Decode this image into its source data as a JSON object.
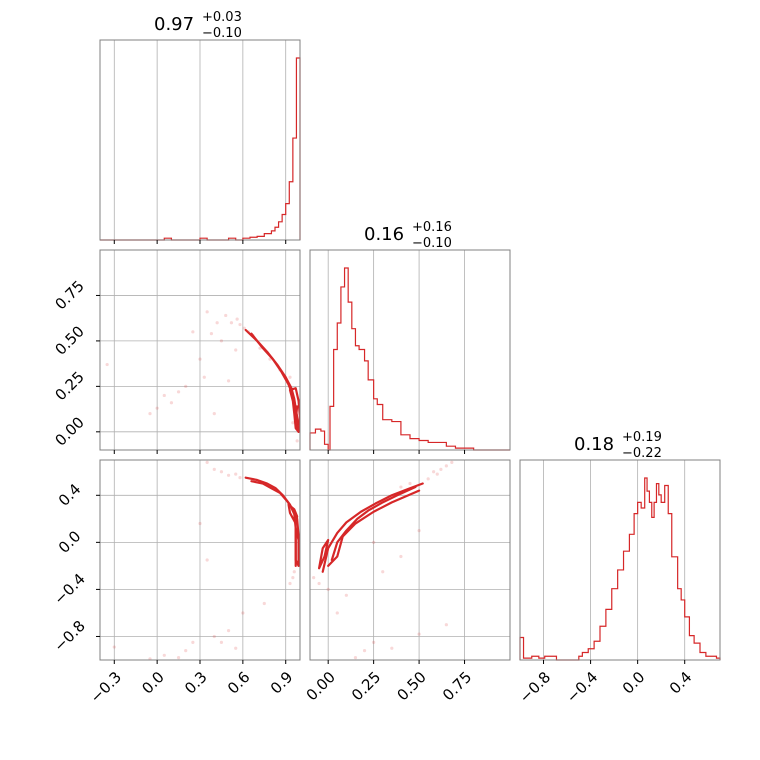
{
  "chart_data": {
    "type": "corner",
    "color": "#d62728",
    "grid": true,
    "params": [
      {
        "range": [
          -0.4,
          1.0
        ],
        "ticks": [
          -0.3,
          0.0,
          0.3,
          0.6,
          0.9
        ],
        "tick_labels": [
          "−0.3",
          "0.0",
          "0.3",
          "0.6",
          "0.9"
        ],
        "title": {
          "median": "0.97",
          "plus": "+0.03",
          "minus": "−0.10"
        },
        "hist": {
          "edges": [
            -0.4,
            -0.35,
            -0.3,
            -0.25,
            -0.2,
            -0.15,
            -0.1,
            -0.05,
            0.0,
            0.05,
            0.1,
            0.15,
            0.2,
            0.25,
            0.3,
            0.35,
            0.4,
            0.45,
            0.5,
            0.55,
            0.6,
            0.65,
            0.7,
            0.75,
            0.8,
            0.825,
            0.85,
            0.875,
            0.9,
            0.925,
            0.95,
            0.975,
            1.0
          ],
          "counts": [
            0,
            0,
            0,
            0,
            0,
            0,
            0,
            0,
            0,
            0.01,
            0,
            0,
            0,
            0,
            0.01,
            0,
            0,
            0,
            0.01,
            0,
            0.01,
            0.015,
            0.02,
            0.035,
            0.05,
            0.07,
            0.1,
            0.14,
            0.2,
            0.32,
            0.56,
            1.0
          ]
        }
      },
      {
        "range": [
          -0.1,
          1.0
        ],
        "ticks": [
          0.0,
          0.25,
          0.5,
          0.75
        ],
        "tick_labels": [
          "0.00",
          "0.25",
          "0.50",
          "0.75"
        ],
        "title": {
          "median": "0.16",
          "plus": "+0.16",
          "minus": "−0.10"
        },
        "hist": {
          "edges": [
            -0.1,
            -0.07,
            -0.04,
            -0.02,
            0.0,
            0.01,
            0.03,
            0.05,
            0.07,
            0.09,
            0.11,
            0.13,
            0.15,
            0.17,
            0.2,
            0.22,
            0.25,
            0.27,
            0.3,
            0.35,
            0.4,
            0.45,
            0.5,
            0.55,
            0.6,
            0.65,
            0.7,
            0.8,
            1.0
          ],
          "counts": [
            0.09,
            0.11,
            0.1,
            0.03,
            0.0,
            0.23,
            0.53,
            0.67,
            0.86,
            0.96,
            0.78,
            0.64,
            0.55,
            0.53,
            0.47,
            0.37,
            0.27,
            0.24,
            0.16,
            0.15,
            0.08,
            0.06,
            0.05,
            0.04,
            0.04,
            0.02,
            0.01,
            0.0
          ]
        }
      },
      {
        "range": [
          -1.0,
          0.7
        ],
        "ticks": [
          -0.8,
          -0.4,
          0.0,
          0.4
        ],
        "tick_labels": [
          "−0.8",
          "−0.4",
          "0.0",
          "0.4"
        ],
        "title": {
          "median": "0.18",
          "plus": "+0.19",
          "minus": "−0.22"
        },
        "hist": {
          "edges": [
            -1.0,
            -0.97,
            -0.9,
            -0.84,
            -0.79,
            -0.69,
            -0.5,
            -0.47,
            -0.42,
            -0.37,
            -0.32,
            -0.27,
            -0.22,
            -0.17,
            -0.12,
            -0.07,
            -0.03,
            0.0,
            0.03,
            0.06,
            0.08,
            0.1,
            0.12,
            0.14,
            0.16,
            0.18,
            0.2,
            0.23,
            0.26,
            0.29,
            0.34,
            0.37,
            0.4,
            0.44,
            0.48,
            0.53,
            0.58,
            0.63,
            0.67,
            0.7
          ],
          "counts": [
            0.12,
            0.01,
            0.02,
            0.01,
            0.02,
            0.0,
            0.02,
            0.04,
            0.06,
            0.1,
            0.18,
            0.27,
            0.38,
            0.48,
            0.58,
            0.67,
            0.78,
            0.84,
            0.81,
            0.97,
            0.9,
            0.84,
            0.76,
            0.84,
            0.94,
            0.88,
            0.84,
            0.93,
            0.78,
            0.55,
            0.38,
            0.32,
            0.23,
            0.13,
            0.09,
            0.04,
            0.02,
            0.02,
            0.01
          ]
        }
      }
    ],
    "pairs": [
      {
        "x": 0,
        "y": 1,
        "contours": [
          [
            [
              0.62,
              0.56
            ],
            [
              0.7,
              0.5
            ],
            [
              0.77,
              0.44
            ],
            [
              0.84,
              0.37
            ],
            [
              0.9,
              0.3
            ],
            [
              0.94,
              0.24
            ],
            [
              0.96,
              0.18
            ],
            [
              0.97,
              0.13
            ],
            [
              0.98,
              0.08
            ],
            [
              0.98,
              0.03
            ],
            [
              0.99,
              0.0
            ]
          ],
          [
            [
              0.66,
              0.54
            ],
            [
              0.74,
              0.46
            ],
            [
              0.81,
              0.4
            ],
            [
              0.87,
              0.33
            ],
            [
              0.92,
              0.26
            ],
            [
              0.95,
              0.2
            ],
            [
              0.97,
              0.12
            ],
            [
              0.99,
              0.04
            ]
          ],
          [
            [
              0.93,
              0.23
            ],
            [
              0.95,
              0.17
            ],
            [
              0.96,
              0.1
            ],
            [
              0.97,
              0.02
            ],
            [
              0.99,
              0.0
            ],
            [
              1.0,
              0.08
            ],
            [
              0.99,
              0.17
            ],
            [
              0.97,
              0.24
            ],
            [
              0.93,
              0.23
            ]
          ],
          [
            [
              0.96,
              0.12
            ],
            [
              0.97,
              0.06
            ],
            [
              0.98,
              0.14
            ],
            [
              0.96,
              0.12
            ]
          ]
        ],
        "points": [
          [
            0.42,
            0.6
          ],
          [
            0.48,
            0.64
          ],
          [
            0.52,
            0.6
          ],
          [
            0.56,
            0.62
          ],
          [
            0.58,
            0.59
          ],
          [
            0.61,
            0.57
          ],
          [
            0.64,
            0.55
          ],
          [
            0.67,
            0.53
          ],
          [
            0.35,
            0.66
          ],
          [
            0.38,
            0.54
          ],
          [
            0.45,
            0.5
          ],
          [
            0.25,
            0.55
          ],
          [
            0.05,
            0.2
          ],
          [
            0.1,
            0.16
          ],
          [
            0.15,
            0.22
          ],
          [
            0.2,
            0.25
          ],
          [
            -0.05,
            0.1
          ],
          [
            0.0,
            0.13
          ],
          [
            0.33,
            0.3
          ],
          [
            0.3,
            0.4
          ],
          [
            0.4,
            0.1
          ],
          [
            0.5,
            0.28
          ],
          [
            0.55,
            0.45
          ],
          [
            -0.35,
            0.37
          ],
          [
            0.72,
            0.46
          ],
          [
            0.79,
            0.4
          ],
          [
            0.86,
            0.34
          ],
          [
            0.93,
            0.3
          ],
          [
            0.95,
            0.05
          ],
          [
            0.98,
            -0.05
          ]
        ]
      },
      {
        "x": 0,
        "y": 2,
        "contours": [
          [
            [
              0.62,
              0.55
            ],
            [
              0.7,
              0.53
            ],
            [
              0.77,
              0.5
            ],
            [
              0.83,
              0.46
            ],
            [
              0.88,
              0.4
            ],
            [
              0.93,
              0.32
            ],
            [
              0.96,
              0.24
            ],
            [
              0.97,
              0.12
            ],
            [
              0.97,
              -0.05
            ],
            [
              0.97,
              -0.2
            ]
          ],
          [
            [
              0.66,
              0.52
            ],
            [
              0.74,
              0.5
            ],
            [
              0.8,
              0.46
            ],
            [
              0.86,
              0.42
            ],
            [
              0.91,
              0.35
            ],
            [
              0.95,
              0.28
            ],
            [
              0.98,
              0.2
            ],
            [
              0.99,
              0.05
            ],
            [
              0.99,
              -0.15
            ]
          ],
          [
            [
              0.92,
              0.32
            ],
            [
              0.96,
              0.28
            ],
            [
              0.98,
              0.22
            ],
            [
              0.97,
              0.16
            ],
            [
              0.93,
              0.25
            ],
            [
              0.92,
              0.32
            ]
          ],
          [
            [
              0.97,
              0.12
            ],
            [
              0.99,
              0.02
            ],
            [
              0.99,
              -0.2
            ],
            [
              0.97,
              -0.15
            ],
            [
              0.97,
              0.12
            ]
          ]
        ],
        "points": [
          [
            0.45,
            0.6
          ],
          [
            0.5,
            0.57
          ],
          [
            0.55,
            0.58
          ],
          [
            0.58,
            0.55
          ],
          [
            0.4,
            0.62
          ],
          [
            0.35,
            0.68
          ],
          [
            0.3,
            0.73
          ],
          [
            0.95,
            -0.3
          ],
          [
            0.93,
            -0.35
          ],
          [
            0.96,
            -0.25
          ],
          [
            0.3,
            0.16
          ],
          [
            0.35,
            -0.15
          ],
          [
            -0.3,
            -0.89
          ],
          [
            0.15,
            -0.98
          ],
          [
            0.2,
            -0.92
          ],
          [
            0.25,
            -0.85
          ],
          [
            0.4,
            -0.8
          ],
          [
            0.5,
            -0.75
          ],
          [
            0.6,
            -0.6
          ],
          [
            0.75,
            -0.52
          ],
          [
            0.05,
            -0.96
          ],
          [
            -0.05,
            -0.99
          ],
          [
            0.55,
            -0.9
          ],
          [
            0.45,
            -0.85
          ]
        ]
      },
      {
        "x": 1,
        "y": 2,
        "contours": [
          [
            [
              -0.03,
              -0.25
            ],
            [
              0.0,
              -0.05
            ],
            [
              0.05,
              0.08
            ],
            [
              0.1,
              0.17
            ],
            [
              0.18,
              0.26
            ],
            [
              0.26,
              0.33
            ],
            [
              0.35,
              0.4
            ],
            [
              0.45,
              0.46
            ],
            [
              0.52,
              0.5
            ]
          ],
          [
            [
              0.02,
              -0.15
            ],
            [
              0.05,
              0.0
            ],
            [
              0.1,
              0.1
            ],
            [
              0.16,
              0.2
            ],
            [
              0.22,
              0.27
            ],
            [
              0.3,
              0.34
            ],
            [
              0.38,
              0.4
            ],
            [
              0.48,
              0.47
            ]
          ],
          [
            [
              0.0,
              -0.2
            ],
            [
              0.05,
              -0.12
            ],
            [
              0.08,
              0.05
            ],
            [
              0.15,
              0.16
            ],
            [
              0.25,
              0.26
            ],
            [
              0.35,
              0.34
            ],
            [
              0.5,
              0.44
            ]
          ],
          [
            [
              -0.05,
              -0.22
            ],
            [
              -0.02,
              -0.12
            ],
            [
              0.0,
              0.02
            ],
            [
              -0.03,
              -0.05
            ],
            [
              -0.05,
              -0.22
            ]
          ]
        ],
        "points": [
          [
            0.55,
            0.54
          ],
          [
            0.6,
            0.58
          ],
          [
            0.62,
            0.62
          ],
          [
            0.65,
            0.65
          ],
          [
            0.68,
            0.68
          ],
          [
            0.58,
            0.6
          ],
          [
            0.45,
            0.5
          ],
          [
            0.4,
            0.47
          ],
          [
            -0.08,
            -0.3
          ],
          [
            -0.05,
            -0.35
          ],
          [
            0.3,
            -0.25
          ],
          [
            0.1,
            -0.45
          ],
          [
            0.15,
            -0.98
          ],
          [
            0.2,
            -0.92
          ],
          [
            0.25,
            -0.85
          ],
          [
            0.35,
            -0.9
          ],
          [
            0.5,
            -0.78
          ],
          [
            0.65,
            -0.7
          ],
          [
            0.05,
            -0.6
          ],
          [
            0.0,
            -0.4
          ],
          [
            0.25,
            0.0
          ],
          [
            0.5,
            0.1
          ],
          [
            0.4,
            -0.12
          ]
        ]
      }
    ]
  }
}
